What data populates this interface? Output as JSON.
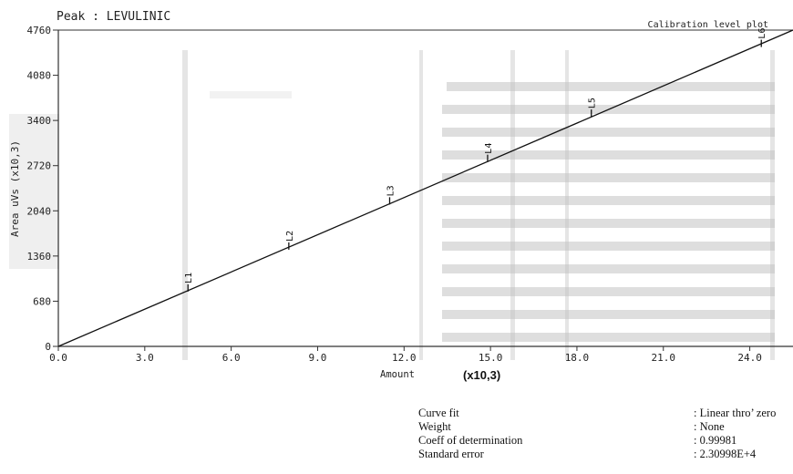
{
  "header": {
    "peak_label": "Peak : LEVULINIC",
    "plot_title": "Calibration level plot"
  },
  "amount_multiplier": "(x10,3)",
  "chart_data": {
    "type": "line",
    "title": "Calibration level plot",
    "xlabel": "Amount",
    "ylabel": "Area uVs (x10,3)",
    "xlim": [
      0,
      25.5
    ],
    "ylim": [
      0,
      4760
    ],
    "x_ticks": [
      0,
      3,
      6,
      9,
      12,
      15,
      18,
      21,
      24
    ],
    "x_tick_labels": [
      "0.0",
      "3.0",
      "6.0",
      "9.0",
      "12.0",
      "15.0",
      "18.0",
      "21.0",
      "24.0"
    ],
    "y_ticks": [
      0,
      680,
      1360,
      2040,
      2720,
      3400,
      4080,
      4760
    ],
    "y_tick_labels": [
      "0",
      "680",
      "1360",
      "2040",
      "2720",
      "3400",
      "4080",
      "4760"
    ],
    "fit_line": {
      "x": [
        0,
        25.5
      ],
      "y": [
        0,
        4760
      ]
    },
    "levels": [
      {
        "label": "L1",
        "x": 4.5,
        "y": 880
      },
      {
        "label": "L2",
        "x": 8.0,
        "y": 1510
      },
      {
        "label": "L3",
        "x": 11.5,
        "y": 2190
      },
      {
        "label": "L4",
        "x": 14.9,
        "y": 2830
      },
      {
        "label": "L5",
        "x": 18.5,
        "y": 3510
      },
      {
        "label": "L6",
        "x": 24.4,
        "y": 4560
      }
    ]
  },
  "stats": [
    {
      "label": "Curve fit",
      "value": ": Linear thro’ zero"
    },
    {
      "label": "Weight",
      "value": ": None"
    },
    {
      "label": "Coeff of determination",
      "value": ": 0.99981"
    },
    {
      "label": "Standard error",
      "value": ": 2.30998E+4"
    }
  ]
}
